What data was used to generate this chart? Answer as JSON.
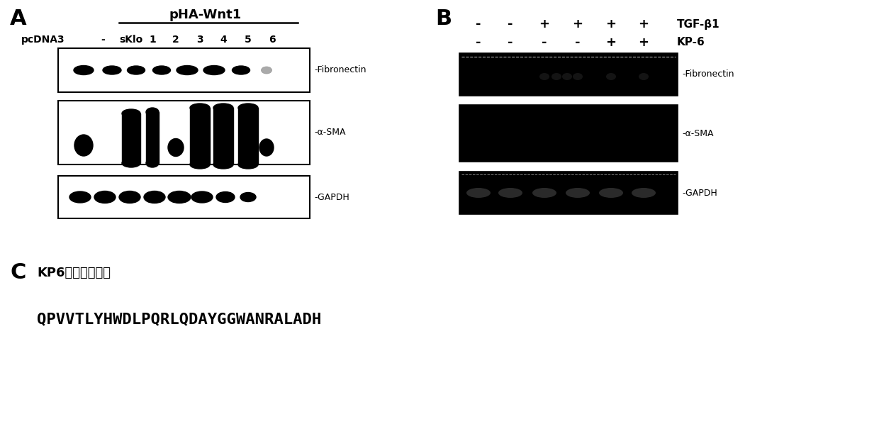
{
  "panel_A_label": "A",
  "panel_B_label": "B",
  "panel_C_label": "C",
  "panel_A_title": "pHA-Wnt1",
  "panel_A_row_label": "pcDNA3",
  "panel_A_cols": [
    "-",
    "sKlo",
    "1",
    "2",
    "3",
    "4",
    "5",
    "6"
  ],
  "panel_B_TGF": [
    "-",
    "-",
    "+",
    "+",
    "+",
    "+"
  ],
  "panel_B_KP6": [
    "-",
    "-",
    "-",
    "-",
    "+",
    "+"
  ],
  "panel_B_label_TGF": "TGF-β1",
  "panel_B_label_KP6": "KP-6",
  "panel_C_title": "KP6氨基酸序列号",
  "panel_C_sequence": "QPVVTLYHWDLPQRLQDAYGGWANRALADH",
  "bg_color": "#ffffff"
}
